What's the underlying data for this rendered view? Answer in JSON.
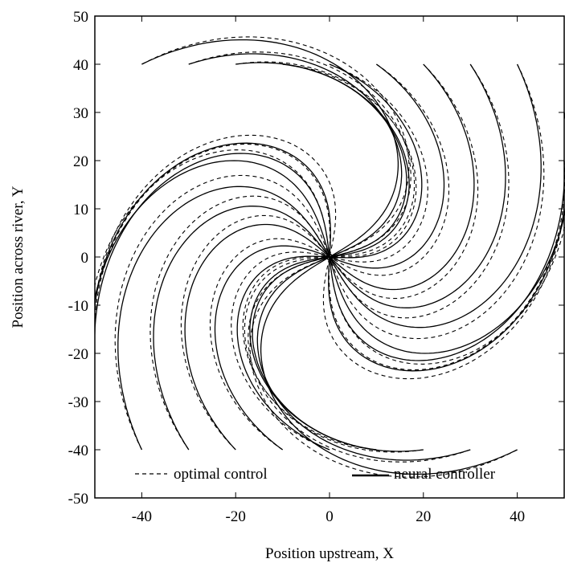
{
  "chart_data": {
    "type": "line",
    "xlabel": "Position upstream,  X",
    "ylabel": "Position across river,  Y",
    "xlim": [
      -50,
      50
    ],
    "ylim": [
      -50,
      50
    ],
    "x_ticks": [
      -40,
      -20,
      0,
      20,
      40
    ],
    "y_ticks": [
      50,
      40,
      30,
      20,
      10,
      0,
      -10,
      -20,
      -30,
      -40,
      -50
    ],
    "grid": false,
    "legend": {
      "placement": "bottom",
      "entries": [
        {
          "label": "optimal control",
          "style": "dashed"
        },
        {
          "label": "neural controller",
          "style": "solid"
        }
      ]
    },
    "spiral": {
      "target": [
        0,
        0
      ],
      "max_turn_degrees": 105,
      "dashed_extra_turn_degrees": 9
    },
    "start_points": [
      [
        -40,
        40
      ],
      [
        -30,
        40
      ],
      [
        -20,
        40
      ],
      [
        -10,
        40
      ],
      [
        0,
        40
      ],
      [
        10,
        40
      ],
      [
        20,
        40
      ],
      [
        30,
        40
      ],
      [
        40,
        40
      ],
      [
        50,
        30
      ],
      [
        50,
        20
      ],
      [
        50,
        10
      ],
      [
        40,
        -40
      ],
      [
        30,
        -40
      ],
      [
        20,
        -40
      ],
      [
        10,
        -40
      ],
      [
        0,
        -40
      ],
      [
        -10,
        -40
      ],
      [
        -20,
        -40
      ],
      [
        -30,
        -40
      ],
      [
        -40,
        -40
      ],
      [
        -50,
        -10
      ],
      [
        -50,
        -20
      ],
      [
        -50,
        -30
      ]
    ]
  }
}
